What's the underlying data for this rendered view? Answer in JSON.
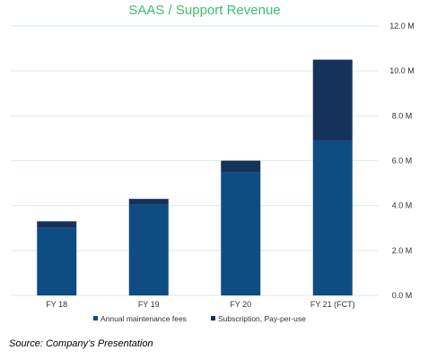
{
  "chart_data": {
    "type": "bar",
    "stacked": true,
    "title": "SAAS / Support Revenue",
    "categories": [
      "FY 18",
      "FY 19",
      "FY 20",
      "FY 21 (FCT)"
    ],
    "series": [
      {
        "name": "Annual maintenance fees",
        "color": "#0e4c84",
        "values": [
          3.0,
          4.05,
          5.5,
          6.9
        ]
      },
      {
        "name": "Subscription, Pay-per-use",
        "color": "#14325a",
        "values": [
          0.3,
          0.25,
          0.5,
          3.6
        ]
      }
    ],
    "ylim": [
      0,
      12
    ],
    "yticks": [
      0,
      2,
      4,
      6,
      8,
      10,
      12
    ],
    "ytick_labels": [
      "0.0 M",
      "2.0 M",
      "4.0 M",
      "6.0 M",
      "8.0 M",
      "10.0 M",
      "12.0 M"
    ],
    "y_axis_side": "right",
    "grid": true,
    "grid_color": "#d6efe5",
    "legend_position": "bottom"
  },
  "source_note": "Source: Company’s Presentation"
}
